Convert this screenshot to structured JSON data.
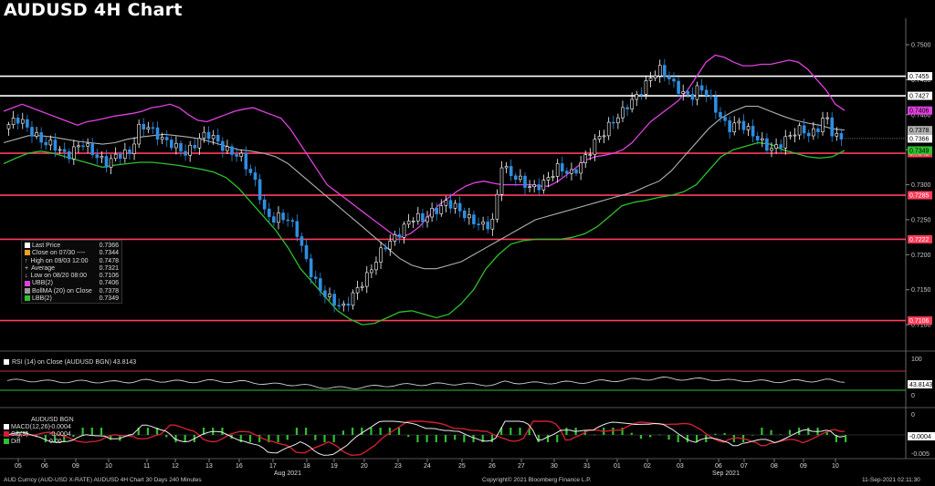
{
  "title": "AUDUSD 4H Chart",
  "colors": {
    "up": "#ffffff",
    "down": "#2f8ee0",
    "ubb": "#e040e0",
    "lbb": "#2ec02e",
    "average": "#b0b0b0",
    "hline_red": "#ff3c5a",
    "hline_white": "#ffffff"
  },
  "legend": {
    "items": [
      {
        "label": "Last Price",
        "value": "0.7366",
        "marker": "box-white"
      },
      {
        "label": "Close on 07/30  ----",
        "value": "0.7344",
        "marker": "box-orange"
      },
      {
        "label": "High on 09/03 12:00",
        "value": "0.7478",
        "marker": "up-tick"
      },
      {
        "label": "Average",
        "value": "0.7321",
        "marker": "plus"
      },
      {
        "label": "Low on 08/20 08:00",
        "value": "0.7106",
        "marker": "down-tick"
      },
      {
        "label": "UBB(2)",
        "value": "0.7406",
        "marker": "box-magenta"
      },
      {
        "label": "BollMA (20)  on Close",
        "value": "0.7378",
        "marker": "box-gray"
      },
      {
        "label": "LBB(2)",
        "value": "0.7349",
        "marker": "box-green"
      }
    ]
  },
  "rsi": {
    "label": "RSI (14)  on Close (AUDUSD BGN)",
    "value": "43.8143",
    "ticks": [
      "100",
      "0"
    ]
  },
  "macd": {
    "title": "AUDUSD BGN",
    "items": [
      {
        "label": "MACD(12,26)",
        "value": "-0.0004",
        "marker": "box-white"
      },
      {
        "label": "Sig(9)",
        "value": "-0.0004",
        "marker": "box-red"
      },
      {
        "label": "Diff",
        "value": "0.00",
        "marker": "box-green"
      }
    ],
    "ticks": [
      "0",
      "-0.0004",
      "-0.005"
    ]
  },
  "footer": {
    "left": "AUD Curncy (AUD-USD X-RATE) AUDUSD 4H Chart 30 Days 240 Minutes",
    "center": "Copyright© 2021 Bloomberg Finance L.P.",
    "right": "11-Sep-2021 02:11:30"
  },
  "chart_data": {
    "type": "candlestick",
    "title": "AUDUSD 4H Chart",
    "x_labels": [
      "05",
      "06",
      "09",
      "10",
      "11",
      "12",
      "13",
      "16",
      "17",
      "18",
      "19",
      "20",
      "23",
      "24",
      "25",
      "26",
      "27",
      "30",
      "31",
      "01",
      "02",
      "03",
      "06",
      "07",
      "08",
      "09",
      "10"
    ],
    "month_labels": [
      {
        "label": "Aug 2021",
        "after": "17"
      },
      {
        "label": "Sep 2021",
        "after": "06"
      }
    ],
    "y_ticks": [
      "0.7500",
      "0.7450",
      "0.7400",
      "0.7350",
      "0.7300",
      "0.7250",
      "0.7200",
      "0.7150",
      "0.7100"
    ],
    "ylim": [
      0.7065,
      0.753
    ],
    "horizontal_lines": [
      {
        "value": 0.7455,
        "label": "0.7455",
        "color": "white"
      },
      {
        "value": 0.7427,
        "label": "0.7427",
        "color": "white"
      },
      {
        "value": 0.7345,
        "label": "0.7345",
        "color": "red"
      },
      {
        "value": 0.7285,
        "label": "0.7285",
        "color": "red"
      },
      {
        "value": 0.7222,
        "label": "0.7222",
        "color": "red"
      },
      {
        "value": 0.7106,
        "label": "0.7106",
        "color": "red"
      }
    ],
    "right_markers": [
      {
        "value": 0.7406,
        "label": "0.7406",
        "color": "#e040e0"
      },
      {
        "value": 0.7378,
        "label": "0.7378",
        "color": "#b0b0b0"
      },
      {
        "value": 0.7366,
        "label": "0.7366",
        "color": "#ffffff"
      },
      {
        "value": 0.7349,
        "label": "0.7349",
        "color": "#2ec02e"
      }
    ],
    "close_path": [
      0.738,
      0.739,
      0.7395,
      0.738,
      0.737,
      0.736,
      0.7358,
      0.735,
      0.734,
      0.7352,
      0.736,
      0.7348,
      0.7338,
      0.733,
      0.734,
      0.7345,
      0.7345,
      0.738,
      0.7385,
      0.7375,
      0.7365,
      0.736,
      0.7352,
      0.7345,
      0.7355,
      0.737,
      0.7372,
      0.7362,
      0.735,
      0.7345,
      0.734,
      0.732,
      0.73,
      0.726,
      0.725,
      0.7255,
      0.725,
      0.7235,
      0.72,
      0.717,
      0.715,
      0.714,
      0.713,
      0.7125,
      0.714,
      0.7155,
      0.717,
      0.719,
      0.721,
      0.722,
      0.723,
      0.7245,
      0.7255,
      0.725,
      0.726,
      0.7265,
      0.7275,
      0.727,
      0.726,
      0.725,
      0.7245,
      0.724,
      0.725,
      0.733,
      0.7315,
      0.731,
      0.73,
      0.7295,
      0.73,
      0.731,
      0.7325,
      0.732,
      0.7315,
      0.733,
      0.7345,
      0.7365,
      0.7375,
      0.739,
      0.74,
      0.7415,
      0.7425,
      0.744,
      0.7455,
      0.7465,
      0.7455,
      0.744,
      0.743,
      0.7425,
      0.744,
      0.743,
      0.741,
      0.739,
      0.738,
      0.739,
      0.738,
      0.737,
      0.736,
      0.735,
      0.7355,
      0.7365,
      0.7375,
      0.738,
      0.737,
      0.738,
      0.74,
      0.737,
      0.7366
    ],
    "upper_band": [
      0.7405,
      0.741,
      0.7415,
      0.741,
      0.7405,
      0.74,
      0.7395,
      0.739,
      0.7385,
      0.739,
      0.7392,
      0.7395,
      0.7398,
      0.74,
      0.7402,
      0.7405,
      0.741,
      0.7412,
      0.7415,
      0.741,
      0.74,
      0.7392,
      0.739,
      0.7395,
      0.74,
      0.7405,
      0.7408,
      0.741,
      0.7405,
      0.74,
      0.7395,
      0.738,
      0.736,
      0.734,
      0.732,
      0.73,
      0.729,
      0.728,
      0.727,
      0.726,
      0.725,
      0.724,
      0.723,
      0.7225,
      0.723,
      0.724,
      0.7255,
      0.727,
      0.728,
      0.729,
      0.7298,
      0.7303,
      0.7305,
      0.7302,
      0.73,
      0.73,
      0.73,
      0.73,
      0.7298,
      0.7298,
      0.7305,
      0.7315,
      0.7325,
      0.7335,
      0.734,
      0.7342,
      0.7345,
      0.735,
      0.736,
      0.7375,
      0.739,
      0.74,
      0.741,
      0.742,
      0.7435,
      0.7455,
      0.7475,
      0.7485,
      0.7482,
      0.7475,
      0.747,
      0.747,
      0.7472,
      0.7472,
      0.7475,
      0.7478,
      0.7475,
      0.7465,
      0.745,
      0.7435,
      0.7415,
      0.7406
    ],
    "middle_band": [
      0.736,
      0.7365,
      0.737,
      0.737,
      0.7368,
      0.7365,
      0.7362,
      0.736,
      0.7358,
      0.736,
      0.7365,
      0.7368,
      0.737,
      0.7372,
      0.737,
      0.7368,
      0.7365,
      0.736,
      0.7355,
      0.735,
      0.7348,
      0.7345,
      0.734,
      0.733,
      0.7315,
      0.73,
      0.7285,
      0.727,
      0.7255,
      0.724,
      0.7225,
      0.721,
      0.7195,
      0.7185,
      0.718,
      0.718,
      0.7185,
      0.719,
      0.72,
      0.721,
      0.722,
      0.723,
      0.724,
      0.725,
      0.7255,
      0.726,
      0.7265,
      0.727,
      0.7275,
      0.728,
      0.7285,
      0.729,
      0.7298,
      0.7305,
      0.732,
      0.734,
      0.736,
      0.738,
      0.7395,
      0.7405,
      0.7412,
      0.7412,
      0.7405,
      0.7398,
      0.7392,
      0.7388,
      0.7385,
      0.738,
      0.7378
    ],
    "lower_band": [
      0.733,
      0.7338,
      0.7345,
      0.7348,
      0.7345,
      0.734,
      0.7335,
      0.733,
      0.7325,
      0.7328,
      0.733,
      0.7332,
      0.7332,
      0.733,
      0.7328,
      0.7325,
      0.7322,
      0.7318,
      0.731,
      0.7295,
      0.7275,
      0.7255,
      0.7235,
      0.721,
      0.718,
      0.716,
      0.714,
      0.712,
      0.7108,
      0.71,
      0.7102,
      0.711,
      0.7118,
      0.712,
      0.7115,
      0.711,
      0.7115,
      0.713,
      0.715,
      0.718,
      0.72,
      0.7215,
      0.722,
      0.7222,
      0.7222,
      0.7222,
      0.7225,
      0.723,
      0.724,
      0.7255,
      0.727,
      0.7275,
      0.7278,
      0.7282,
      0.7285,
      0.729,
      0.73,
      0.732,
      0.734,
      0.735,
      0.7355,
      0.736,
      0.7358,
      0.735,
      0.7345,
      0.734,
      0.7338,
      0.734,
      0.7349
    ]
  }
}
